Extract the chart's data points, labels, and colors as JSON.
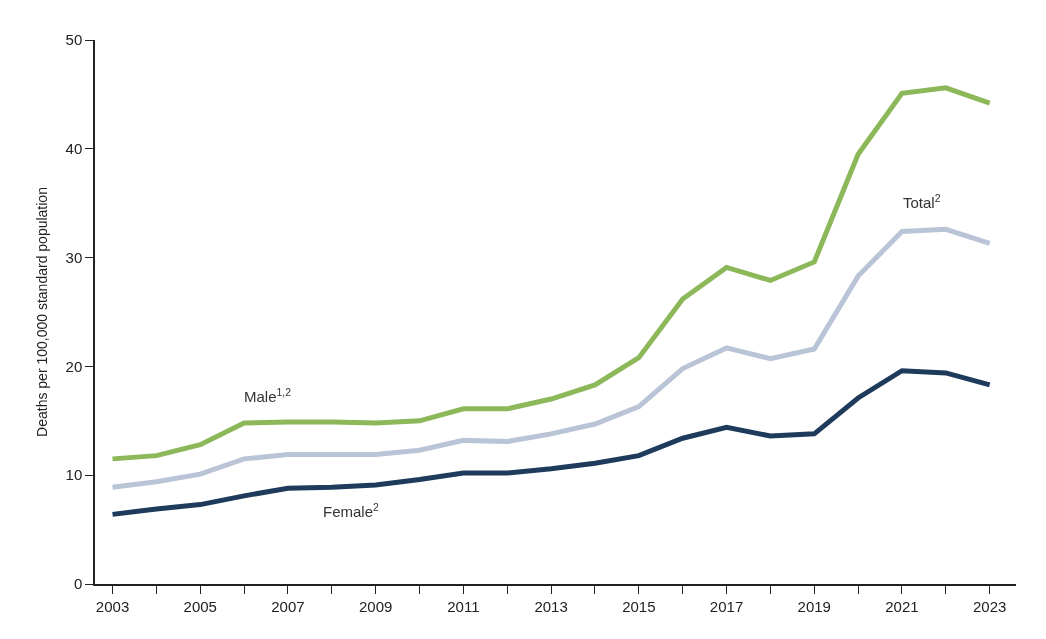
{
  "chart_data": {
    "type": "line",
    "ylabel": "Deaths per 100,000 standard population",
    "x": [
      2003,
      2004,
      2005,
      2006,
      2007,
      2008,
      2009,
      2010,
      2011,
      2012,
      2013,
      2014,
      2015,
      2016,
      2017,
      2018,
      2019,
      2020,
      2021,
      2022,
      2023
    ],
    "series": [
      {
        "name": "Male$^{1,2}$",
        "color": "#8cb85a",
        "values": [
          11.5,
          11.8,
          12.8,
          14.8,
          14.9,
          14.9,
          14.8,
          15.0,
          16.1,
          16.1,
          17.0,
          18.3,
          20.8,
          26.2,
          29.1,
          27.9,
          29.6,
          39.5,
          45.1,
          45.6,
          44.2
        ]
      },
      {
        "name": "Total$^{2}$",
        "color": "#b9c4d6",
        "values": [
          8.9,
          9.4,
          10.1,
          11.5,
          11.9,
          11.9,
          11.9,
          12.3,
          13.2,
          13.1,
          13.8,
          14.7,
          16.3,
          19.8,
          21.7,
          20.7,
          21.6,
          28.3,
          32.4,
          32.6,
          31.3
        ]
      },
      {
        "name": "Female$^{2}$",
        "color": "#1f3b5c",
        "values": [
          6.4,
          6.9,
          7.3,
          8.1,
          8.8,
          8.9,
          9.1,
          9.6,
          10.2,
          10.2,
          10.6,
          11.1,
          11.8,
          13.4,
          14.4,
          13.6,
          13.8,
          17.1,
          19.6,
          19.4,
          18.3
        ]
      }
    ],
    "ylim": [
      0,
      50
    ],
    "yticks": [
      0,
      10,
      20,
      30,
      40,
      50
    ],
    "xlim": [
      2002.6,
      2023.6
    ],
    "xticks": [
      2003,
      {
        "value": 2004,
        "label": null
      },
      2005,
      {
        "value": 2006,
        "label": null
      },
      2007,
      {
        "value": 2008,
        "label": null
      },
      2009,
      {
        "value": 2010,
        "label": null
      },
      2011,
      {
        "value": 2012,
        "label": null
      },
      2013,
      {
        "value": 2014,
        "label": null
      },
      2015,
      {
        "value": 2016,
        "label": null
      },
      2017,
      {
        "value": 2018,
        "label": null
      },
      2019,
      {
        "value": 2020,
        "label": null
      },
      2021,
      {
        "value": 2022,
        "label": null
      },
      2023
    ],
    "legend": false,
    "marker": "none",
    "line_style": "solid"
  }
}
